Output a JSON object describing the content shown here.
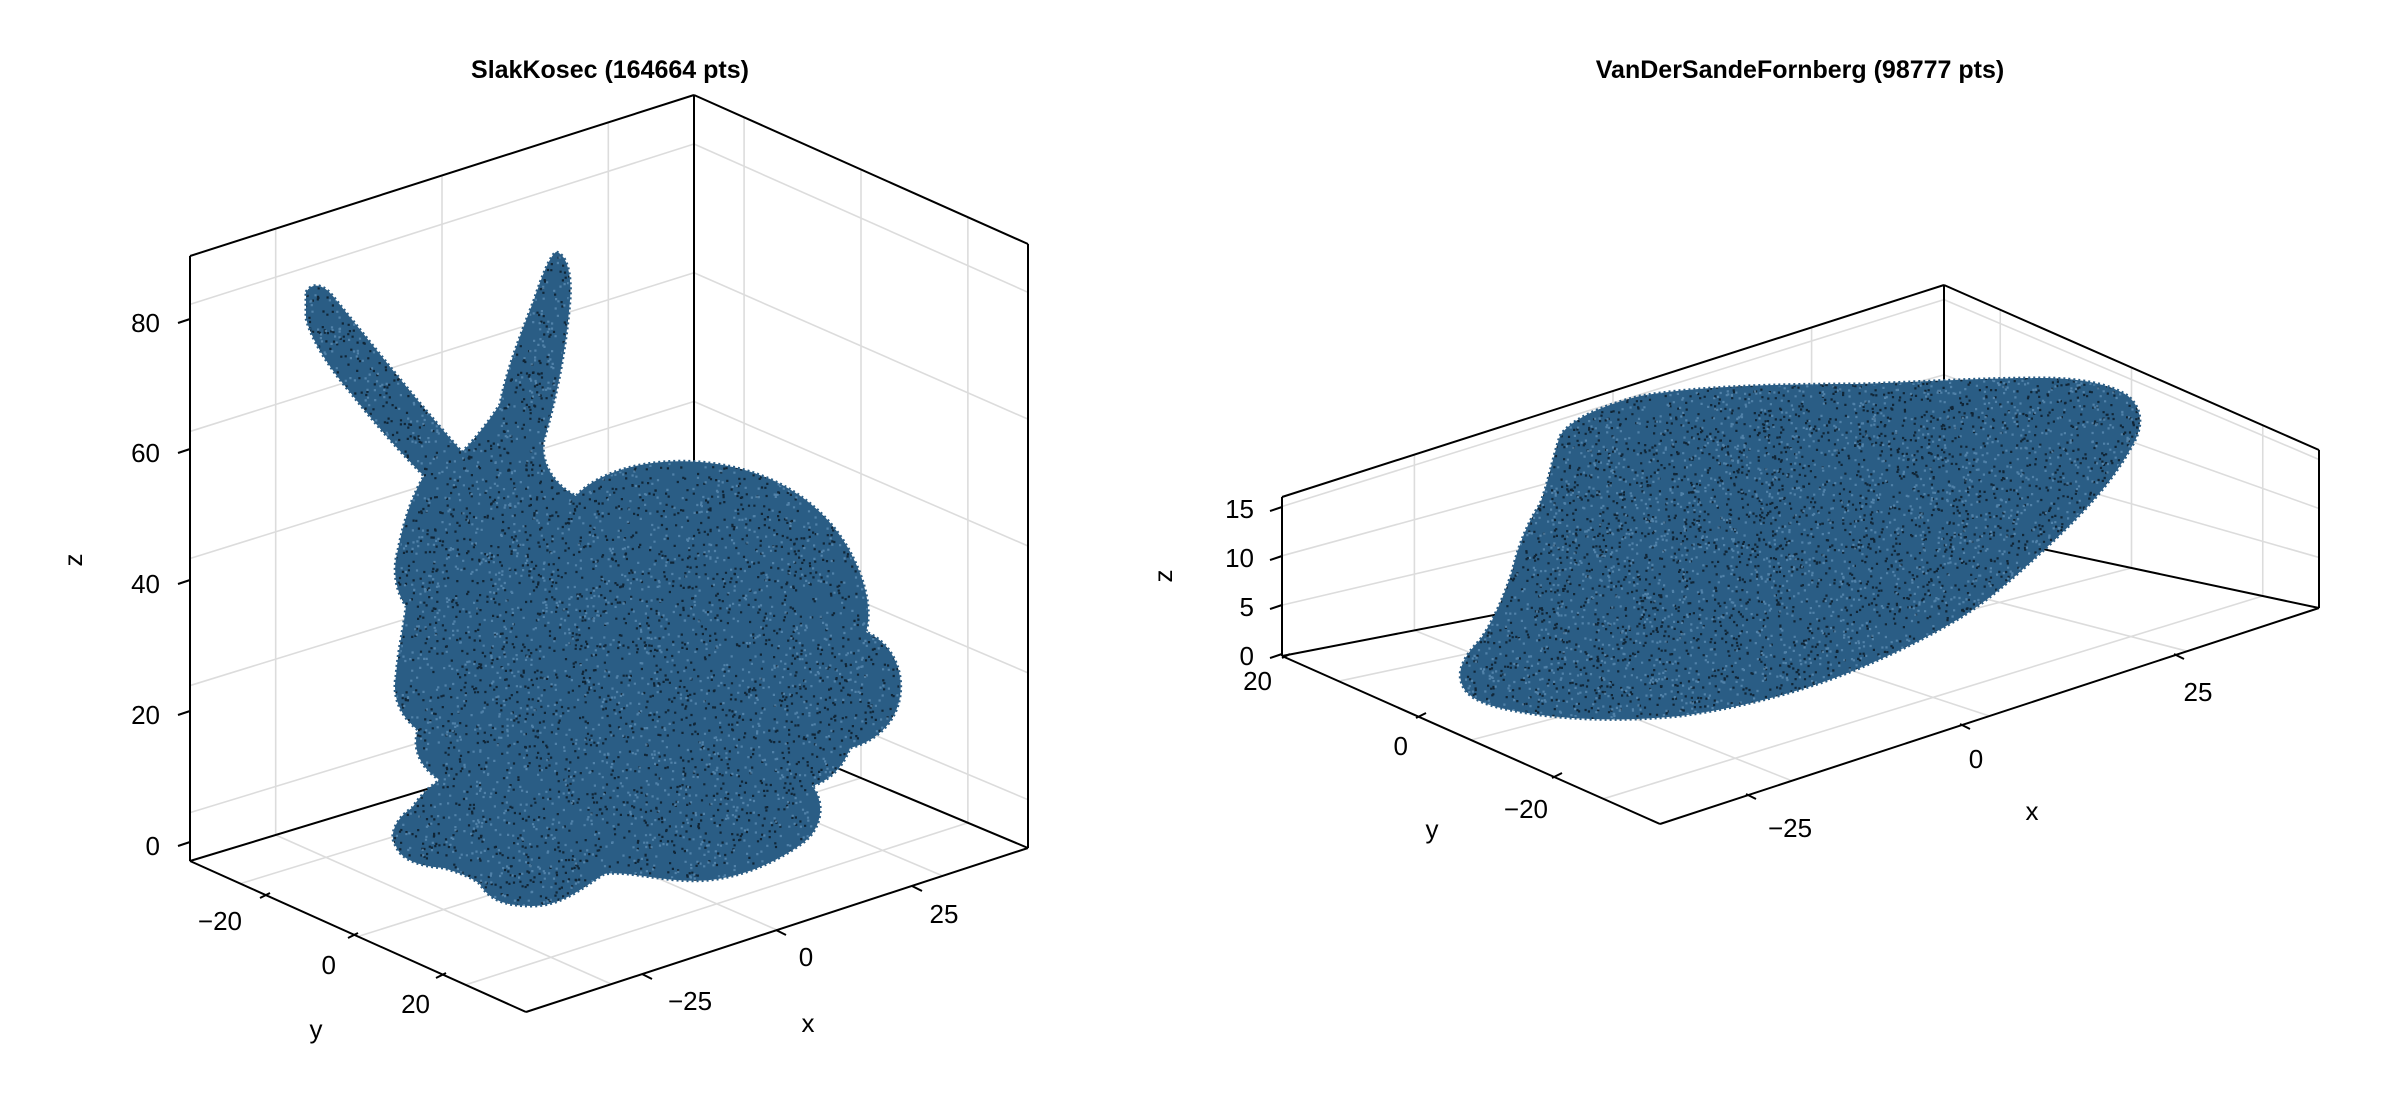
{
  "chart_data": [
    {
      "type": "scatter",
      "subtype": "3d-point-cloud",
      "title": "SlakKosec (164664 pts)",
      "xlabel": "x",
      "ylabel": "y",
      "zlabel": "z",
      "x_ticks": [
        -25,
        0,
        25
      ],
      "y_ticks": [
        -20,
        0,
        20
      ],
      "z_ticks": [
        0,
        20,
        40,
        60,
        80
      ],
      "x_tick_labels": [
        "−25",
        "0",
        "25"
      ],
      "y_tick_labels": [
        "−20",
        "0",
        "20"
      ],
      "z_tick_labels": [
        "0",
        "20",
        "40",
        "60",
        "80"
      ],
      "xlim": [
        -45,
        45
      ],
      "ylim": [
        -35,
        35
      ],
      "zlim": [
        -2,
        90
      ],
      "point_count": 164664,
      "marker_color": "#2a5d85",
      "marker_edge_color": "#0d1f2e",
      "grid": true,
      "shape": "bunny"
    },
    {
      "type": "scatter",
      "subtype": "3d-point-cloud",
      "title": "VanDerSandeFornberg (98777 pts)",
      "xlabel": "x",
      "ylabel": "y",
      "zlabel": "z",
      "x_ticks": [
        -25,
        0,
        25
      ],
      "y_ticks": [
        -20,
        0,
        20
      ],
      "z_ticks": [
        0,
        5,
        10,
        15
      ],
      "x_tick_labels": [
        "−25",
        "0",
        "25"
      ],
      "y_tick_labels": [
        "−20",
        "0",
        "20"
      ],
      "z_tick_labels": [
        "0",
        "5",
        "10",
        "15"
      ],
      "xlim": [
        -45,
        45
      ],
      "ylim": [
        -35,
        35
      ],
      "zlim": [
        0,
        16
      ],
      "point_count": 98777,
      "marker_color": "#2a5d85",
      "marker_edge_color": "#0d1f2e",
      "grid": true,
      "shape": "flattened-slab"
    }
  ]
}
